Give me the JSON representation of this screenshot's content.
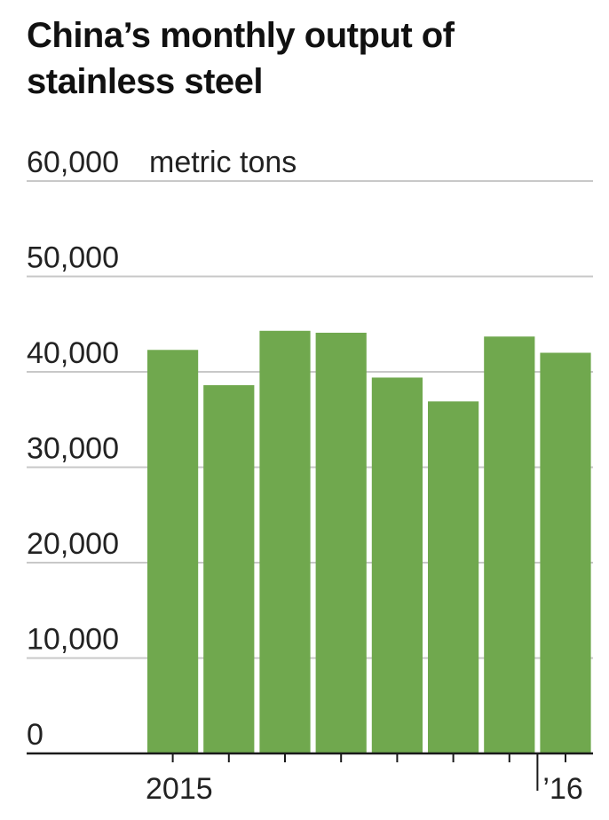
{
  "chart_data": {
    "type": "bar",
    "title": "China’s monthly output of stainless steel",
    "unit_label": "metric tons",
    "categories": [
      "",
      "",
      "",
      "",
      "",
      "",
      "",
      ""
    ],
    "values": [
      42300,
      38600,
      44300,
      44100,
      39400,
      36900,
      43700,
      42000
    ],
    "ylim": [
      0,
      60000
    ],
    "y_ticks": [
      0,
      10000,
      20000,
      30000,
      40000,
      50000,
      60000
    ],
    "y_tick_labels": [
      "0",
      "10,000",
      "20,000",
      "30,000",
      "40,000",
      "50,000",
      "60,000"
    ],
    "x_tick_labels": [
      "2015",
      "’16"
    ],
    "grid": true,
    "bar_color": "#70a84e",
    "grid_color": "#c8c8c8",
    "axis_color": "#1a1a1a"
  }
}
